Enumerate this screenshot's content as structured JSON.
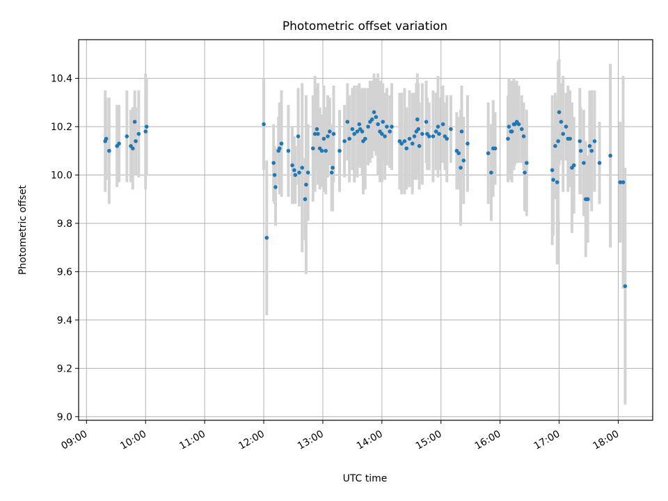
{
  "chart_data": {
    "type": "scatter",
    "title": "Photometric offset variation",
    "xlabel": "UTC time",
    "ylabel": "Photometric offset",
    "xlim": [
      "08:52",
      "18:35"
    ],
    "ylim": [
      8.985,
      10.56
    ],
    "x_ticks": [
      "09:00",
      "10:00",
      "11:00",
      "12:00",
      "13:00",
      "14:00",
      "15:00",
      "16:00",
      "17:00",
      "18:00"
    ],
    "y_ticks": [
      "9.0",
      "9.2",
      "9.4",
      "9.6",
      "9.8",
      "10.0",
      "10.2",
      "10.4"
    ],
    "grid": true,
    "colors": {
      "points": "#1f77b4",
      "error_bars": "#d3d3d3",
      "grid": "#b0b0b0",
      "axes": "#000000"
    },
    "points": [
      {
        "t": "09:19",
        "y": 10.14,
        "err": 0.21
      },
      {
        "t": "09:20",
        "y": 10.15,
        "err": 0.17
      },
      {
        "t": "09:23",
        "y": 10.1,
        "err": 0.22
      },
      {
        "t": "09:31",
        "y": 10.12,
        "err": 0.17
      },
      {
        "t": "09:33",
        "y": 10.13,
        "err": 0.16
      },
      {
        "t": "09:41",
        "y": 10.16,
        "err": 0.19
      },
      {
        "t": "09:45",
        "y": 10.12,
        "err": 0.15
      },
      {
        "t": "09:47",
        "y": 10.11,
        "err": 0.17
      },
      {
        "t": "09:49",
        "y": 10.22,
        "err": 0.13
      },
      {
        "t": "09:50",
        "y": 10.14,
        "err": 0.14
      },
      {
        "t": "09:53",
        "y": 10.17,
        "err": 0.18
      },
      {
        "t": "10:00",
        "y": 10.18,
        "err": 0.24
      },
      {
        "t": "10:01",
        "y": 10.2,
        "err": 0.2
      },
      {
        "t": "12:00",
        "y": 10.21,
        "err": 0.19
      },
      {
        "t": "12:03",
        "y": 9.74,
        "err": 0.32
      },
      {
        "t": "12:10",
        "y": 10.05,
        "err": 0.16
      },
      {
        "t": "12:11",
        "y": 10.0,
        "err": 0.12
      },
      {
        "t": "12:12",
        "y": 9.95,
        "err": 0.16
      },
      {
        "t": "12:15",
        "y": 10.1,
        "err": 0.14
      },
      {
        "t": "12:16",
        "y": 10.11,
        "err": 0.19
      },
      {
        "t": "12:18",
        "y": 10.13,
        "err": 0.22
      },
      {
        "t": "12:25",
        "y": 10.1,
        "err": 0.19
      },
      {
        "t": "12:29",
        "y": 10.04,
        "err": 0.16
      },
      {
        "t": "12:31",
        "y": 10.02,
        "err": 0.14
      },
      {
        "t": "12:32",
        "y": 10.0,
        "err": 0.12
      },
      {
        "t": "12:35",
        "y": 10.16,
        "err": 0.2
      },
      {
        "t": "12:36",
        "y": 10.01,
        "err": 0.14
      },
      {
        "t": "12:39",
        "y": 10.03,
        "err": 0.35
      },
      {
        "t": "12:42",
        "y": 9.9,
        "err": 0.17
      },
      {
        "t": "12:43",
        "y": 9.96,
        "err": 0.37
      },
      {
        "t": "12:45",
        "y": 10.01,
        "err": 0.2
      },
      {
        "t": "12:50",
        "y": 10.11,
        "err": 0.22
      },
      {
        "t": "12:52",
        "y": 10.17,
        "err": 0.24
      },
      {
        "t": "12:54",
        "y": 10.19,
        "err": 0.17
      },
      {
        "t": "12:55",
        "y": 10.17,
        "err": 0.21
      },
      {
        "t": "12:57",
        "y": 10.11,
        "err": 0.17
      },
      {
        "t": "12:59",
        "y": 10.1,
        "err": 0.15
      },
      {
        "t": "13:01",
        "y": 10.15,
        "err": 0.22
      },
      {
        "t": "13:03",
        "y": 10.1,
        "err": 0.18
      },
      {
        "t": "13:05",
        "y": 10.16,
        "err": 0.17
      },
      {
        "t": "13:07",
        "y": 10.18,
        "err": 0.14
      },
      {
        "t": "13:09",
        "y": 10.01,
        "err": 0.16
      },
      {
        "t": "13:10",
        "y": 10.03,
        "err": 0.18
      },
      {
        "t": "13:11",
        "y": 10.17,
        "err": 0.2
      },
      {
        "t": "13:17",
        "y": 10.1,
        "err": 0.17
      },
      {
        "t": "13:22",
        "y": 10.14,
        "err": 0.15
      },
      {
        "t": "13:25",
        "y": 10.22,
        "err": 0.16
      },
      {
        "t": "13:27",
        "y": 10.15,
        "err": 0.18
      },
      {
        "t": "13:30",
        "y": 10.19,
        "err": 0.17
      },
      {
        "t": "13:32",
        "y": 10.17,
        "err": 0.2
      },
      {
        "t": "13:35",
        "y": 10.18,
        "err": 0.19
      },
      {
        "t": "13:37",
        "y": 10.21,
        "err": 0.17
      },
      {
        "t": "13:38",
        "y": 10.19,
        "err": 0.16
      },
      {
        "t": "13:40",
        "y": 10.18,
        "err": 0.18
      },
      {
        "t": "13:41",
        "y": 10.14,
        "err": 0.22
      },
      {
        "t": "13:43",
        "y": 10.15,
        "err": 0.21
      },
      {
        "t": "13:46",
        "y": 10.2,
        "err": 0.16
      },
      {
        "t": "13:48",
        "y": 10.22,
        "err": 0.17
      },
      {
        "t": "13:50",
        "y": 10.23,
        "err": 0.16
      },
      {
        "t": "13:52",
        "y": 10.26,
        "err": 0.16
      },
      {
        "t": "13:54",
        "y": 10.24,
        "err": 0.16
      },
      {
        "t": "13:56",
        "y": 10.21,
        "err": 0.21
      },
      {
        "t": "13:58",
        "y": 10.18,
        "err": 0.21
      },
      {
        "t": "14:00",
        "y": 10.17,
        "err": 0.2
      },
      {
        "t": "14:01",
        "y": 10.22,
        "err": 0.16
      },
      {
        "t": "14:03",
        "y": 10.16,
        "err": 0.18
      },
      {
        "t": "14:05",
        "y": 10.2,
        "err": 0.16
      },
      {
        "t": "14:08",
        "y": 10.18,
        "err": 0.15
      },
      {
        "t": "14:10",
        "y": 10.2,
        "err": 0.18
      },
      {
        "t": "14:18",
        "y": 10.14,
        "err": 0.2
      },
      {
        "t": "14:20",
        "y": 10.13,
        "err": 0.21
      },
      {
        "t": "14:23",
        "y": 10.14,
        "err": 0.22
      },
      {
        "t": "14:25",
        "y": 10.11,
        "err": 0.17
      },
      {
        "t": "14:28",
        "y": 10.15,
        "err": 0.2
      },
      {
        "t": "14:31",
        "y": 10.13,
        "err": 0.21
      },
      {
        "t": "14:33",
        "y": 10.16,
        "err": 0.18
      },
      {
        "t": "14:35",
        "y": 10.18,
        "err": 0.2
      },
      {
        "t": "14:36",
        "y": 10.23,
        "err": 0.19
      },
      {
        "t": "14:37",
        "y": 10.19,
        "err": 0.19
      },
      {
        "t": "14:38",
        "y": 10.12,
        "err": 0.18
      },
      {
        "t": "14:41",
        "y": 10.17,
        "err": 0.21
      },
      {
        "t": "14:45",
        "y": 10.22,
        "err": 0.17
      },
      {
        "t": "14:46",
        "y": 10.17,
        "err": 0.15
      },
      {
        "t": "14:48",
        "y": 10.16,
        "err": 0.14
      },
      {
        "t": "14:52",
        "y": 10.16,
        "err": 0.19
      },
      {
        "t": "14:55",
        "y": 10.18,
        "err": 0.16
      },
      {
        "t": "14:57",
        "y": 10.2,
        "err": 0.21
      },
      {
        "t": "14:58",
        "y": 10.17,
        "err": 0.15
      },
      {
        "t": "15:02",
        "y": 10.21,
        "err": 0.16
      },
      {
        "t": "15:04",
        "y": 10.16,
        "err": 0.14
      },
      {
        "t": "15:06",
        "y": 10.15,
        "err": 0.18
      },
      {
        "t": "15:10",
        "y": 10.19,
        "err": 0.14
      },
      {
        "t": "15:16",
        "y": 10.1,
        "err": 0.16
      },
      {
        "t": "15:18",
        "y": 10.09,
        "err": 0.15
      },
      {
        "t": "15:20",
        "y": 10.03,
        "err": 0.24
      },
      {
        "t": "15:21",
        "y": 10.18,
        "err": 0.19
      },
      {
        "t": "15:23",
        "y": 10.06,
        "err": 0.18
      },
      {
        "t": "15:27",
        "y": 10.13,
        "err": 0.2
      },
      {
        "t": "15:48",
        "y": 10.09,
        "err": 0.21
      },
      {
        "t": "15:51",
        "y": 10.01,
        "err": 0.2
      },
      {
        "t": "15:53",
        "y": 10.11,
        "err": 0.2
      },
      {
        "t": "15:55",
        "y": 10.11,
        "err": 0.15
      },
      {
        "t": "16:08",
        "y": 10.15,
        "err": 0.18
      },
      {
        "t": "16:09",
        "y": 10.2,
        "err": 0.2
      },
      {
        "t": "16:11",
        "y": 10.18,
        "err": 0.2
      },
      {
        "t": "16:12",
        "y": 10.18,
        "err": 0.21
      },
      {
        "t": "16:14",
        "y": 10.21,
        "err": 0.19
      },
      {
        "t": "16:15",
        "y": 10.21,
        "err": 0.17
      },
      {
        "t": "16:17",
        "y": 10.22,
        "err": 0.17
      },
      {
        "t": "16:19",
        "y": 10.21,
        "err": 0.16
      },
      {
        "t": "16:22",
        "y": 10.19,
        "err": 0.14
      },
      {
        "t": "16:24",
        "y": 10.16,
        "err": 0.14
      },
      {
        "t": "16:25",
        "y": 10.01,
        "err": 0.16
      },
      {
        "t": "16:27",
        "y": 10.05,
        "err": 0.22
      },
      {
        "t": "16:53",
        "y": 10.02,
        "err": 0.31
      },
      {
        "t": "16:54",
        "y": 9.98,
        "err": 0.23
      },
      {
        "t": "16:56",
        "y": 10.12,
        "err": 0.22
      },
      {
        "t": "16:58",
        "y": 9.97,
        "err": 0.34
      },
      {
        "t": "16:59",
        "y": 10.14,
        "err": 0.33
      },
      {
        "t": "17:00",
        "y": 10.26,
        "err": 0.22
      },
      {
        "t": "17:02",
        "y": 10.22,
        "err": 0.16
      },
      {
        "t": "17:04",
        "y": 10.17,
        "err": 0.24
      },
      {
        "t": "17:07",
        "y": 10.2,
        "err": 0.14
      },
      {
        "t": "17:09",
        "y": 10.15,
        "err": 0.22
      },
      {
        "t": "17:11",
        "y": 10.15,
        "err": 0.2
      },
      {
        "t": "17:13",
        "y": 10.03,
        "err": 0.27
      },
      {
        "t": "17:15",
        "y": 10.04,
        "err": 0.2
      },
      {
        "t": "17:21",
        "y": 10.14,
        "err": 0.22
      },
      {
        "t": "17:22",
        "y": 10.1,
        "err": 0.18
      },
      {
        "t": "17:25",
        "y": 10.05,
        "err": 0.22
      },
      {
        "t": "17:27",
        "y": 9.9,
        "err": 0.24
      },
      {
        "t": "17:29",
        "y": 9.9,
        "err": 0.18
      },
      {
        "t": "17:31",
        "y": 10.12,
        "err": 0.23
      },
      {
        "t": "17:33",
        "y": 10.1,
        "err": 0.25
      },
      {
        "t": "17:36",
        "y": 10.14,
        "err": 0.21
      },
      {
        "t": "17:41",
        "y": 10.05,
        "err": 0.17
      },
      {
        "t": "17:52",
        "y": 10.08,
        "err": 0.38
      },
      {
        "t": "18:02",
        "y": 9.97,
        "err": 0.25
      },
      {
        "t": "18:05",
        "y": 9.97,
        "err": 0.44
      },
      {
        "t": "18:07",
        "y": 9.54,
        "err": 0.49
      }
    ]
  }
}
